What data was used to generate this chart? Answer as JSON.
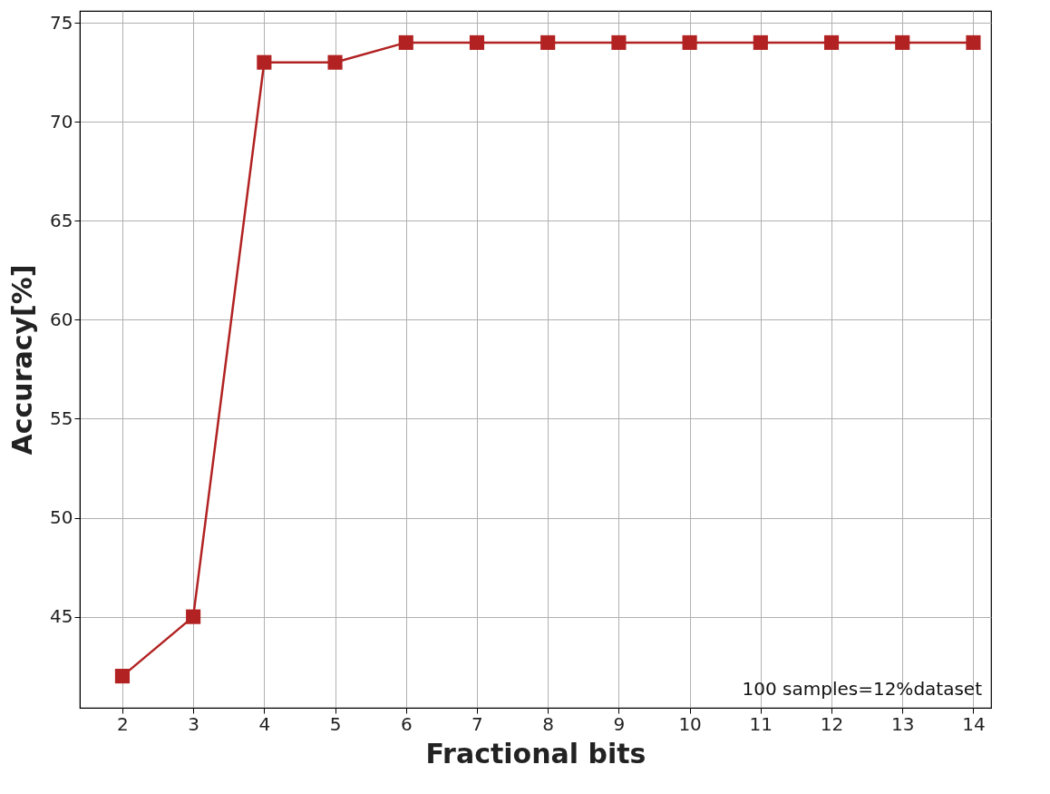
{
  "chart_data": {
    "type": "line",
    "xlabel": "Fractional bits",
    "ylabel": "Accuracy[%]",
    "x": [
      2,
      3,
      4,
      5,
      6,
      7,
      8,
      9,
      10,
      11,
      12,
      13,
      14
    ],
    "series": [
      {
        "color": "#b22222",
        "values": [
          42,
          45,
          73,
          73,
          74,
          74,
          74,
          74,
          74,
          74,
          74,
          74,
          74
        ]
      }
    ],
    "xlim": [
      1.4,
      14.25
    ],
    "ylim": [
      40.4,
      75.6
    ],
    "xticks": [
      2,
      3,
      4,
      5,
      6,
      7,
      8,
      9,
      10,
      11,
      12,
      13,
      14
    ],
    "yticks": [
      45,
      50,
      55,
      60,
      65,
      70,
      75
    ],
    "grid": true,
    "marker": "square",
    "line_style": "solid",
    "annotations": [
      "100 samples=12%dataset"
    ]
  }
}
